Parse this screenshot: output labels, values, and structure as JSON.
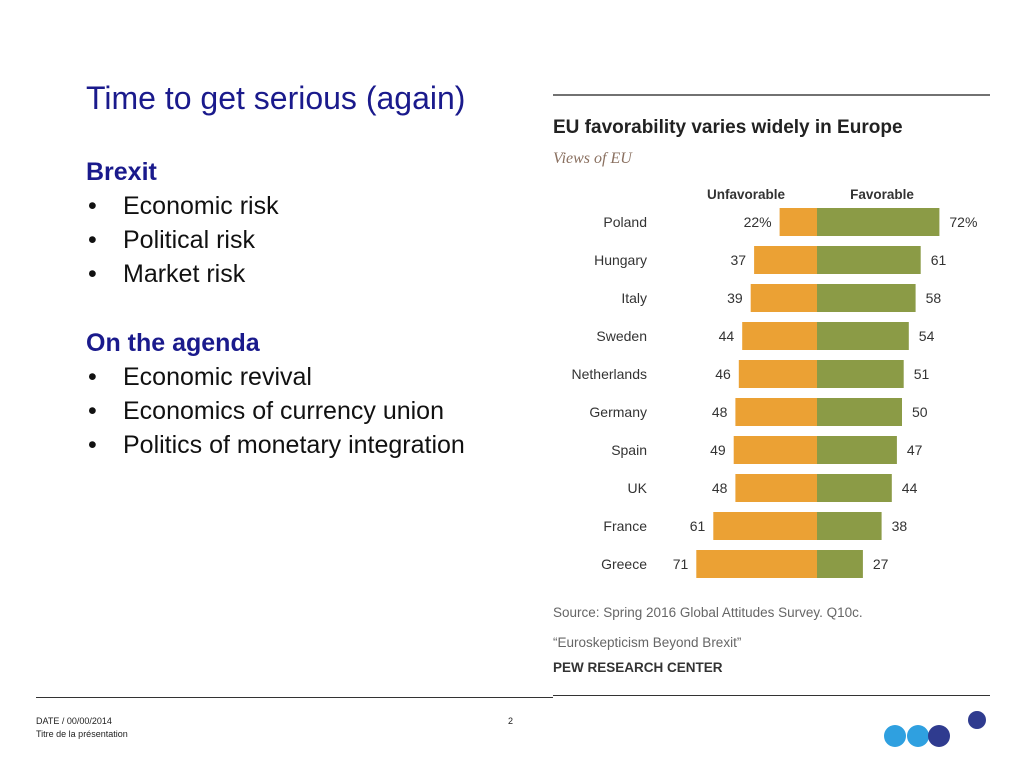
{
  "slide": {
    "title": "Time to get serious (again)",
    "sections": [
      {
        "heading": "Brexit",
        "items": [
          "Economic risk",
          "Political risk",
          "Market risk"
        ]
      },
      {
        "heading": "On the agenda",
        "items": [
          "Economic revival",
          "Economics of currency union",
          "Politics of monetary integration"
        ]
      }
    ],
    "bullet_glyph": "•"
  },
  "chart_data": {
    "type": "bar",
    "subtype": "diverging-horizontal",
    "title": "EU favorability varies widely in Europe",
    "subtitle": "Views of EU",
    "categories": [
      "Poland",
      "Hungary",
      "Italy",
      "Sweden",
      "Netherlands",
      "Germany",
      "Spain",
      "UK",
      "France",
      "Greece"
    ],
    "series": [
      {
        "name": "Unfavorable",
        "values": [
          22,
          37,
          39,
          44,
          46,
          48,
          49,
          48,
          61,
          71
        ],
        "color": "#eba134"
      },
      {
        "name": "Favorable",
        "values": [
          72,
          61,
          58,
          54,
          51,
          50,
          47,
          44,
          38,
          27
        ],
        "color": "#8b9b46"
      }
    ],
    "value_labels": {
      "Unfavorable": [
        "22%",
        "37",
        "39",
        "44",
        "46",
        "48",
        "49",
        "48",
        "61",
        "71"
      ],
      "Favorable": [
        "72%",
        "61",
        "58",
        "54",
        "51",
        "50",
        "47",
        "44",
        "38",
        "27"
      ]
    },
    "xlim": [
      0,
      100
    ],
    "source": "Source: Spring 2016 Global Attitudes Survey. Q10c.",
    "report": "“Euroskepticism Beyond Brexit”",
    "org": "PEW RESEARCH CENTER"
  },
  "footer": {
    "date": "DATE / 00/00/2014",
    "subtitle": "Titre de la présentation",
    "page": "2"
  },
  "logo": {
    "name": "dots-logo",
    "colors": [
      "#2fa0e0",
      "#2fa0e0",
      "#2f3b8f",
      "#2f3b8f"
    ]
  }
}
